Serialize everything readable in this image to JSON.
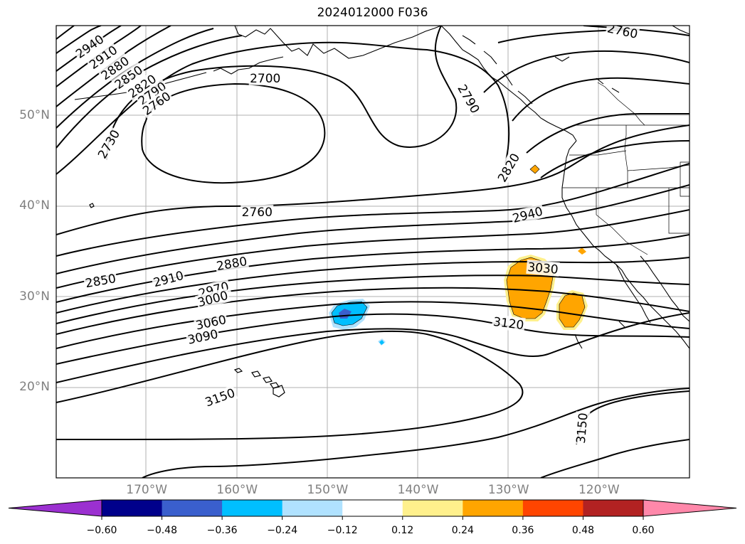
{
  "title": "2024012000 F036",
  "lat_labels": [
    {
      "lat": 50,
      "text": "50°N"
    },
    {
      "lat": 40,
      "text": "40°N"
    },
    {
      "lat": 30,
      "text": "30°N"
    },
    {
      "lat": 20,
      "text": "20°N"
    }
  ],
  "lon_labels": [
    {
      "lon": -170,
      "text": "170°W"
    },
    {
      "lon": -160,
      "text": "160°W"
    },
    {
      "lon": -150,
      "text": "150°W"
    },
    {
      "lon": -140,
      "text": "140°W"
    },
    {
      "lon": -130,
      "text": "130°W"
    },
    {
      "lon": -120,
      "text": "120°W"
    }
  ],
  "contour_labels": [
    {
      "text": "2940",
      "lon": -176.3,
      "lat": 57.7,
      "rot": -35
    },
    {
      "text": "2910",
      "lon": -174.8,
      "lat": 56.5,
      "rot": -35
    },
    {
      "text": "2880",
      "lon": -173.5,
      "lat": 55.3,
      "rot": -35
    },
    {
      "text": "2850",
      "lon": -172.0,
      "lat": 54.3,
      "rot": -35
    },
    {
      "text": "2820",
      "lon": -170.5,
      "lat": 53.3,
      "rot": -35
    },
    {
      "text": "2790",
      "lon": -169.4,
      "lat": 52.5,
      "rot": -35
    },
    {
      "text": "2760",
      "lon": -168.9,
      "lat": 51.4,
      "rot": -35
    },
    {
      "text": "2700",
      "lon": -156.9,
      "lat": 54.2,
      "rot": 0
    },
    {
      "text": "2730",
      "lon": -174.2,
      "lat": 46.9,
      "rot": -60
    },
    {
      "text": "2760",
      "lon": -157.8,
      "lat": 39.4,
      "rot": 0
    },
    {
      "text": "2790",
      "lon": -134.4,
      "lat": 51.9,
      "rot": 60
    },
    {
      "text": "2820",
      "lon": -130.0,
      "lat": 44.3,
      "rot": -60
    },
    {
      "text": "2940",
      "lon": -127.9,
      "lat": 39.1,
      "rot": -15
    },
    {
      "text": "2880",
      "lon": -160.6,
      "lat": 33.7,
      "rot": -10
    },
    {
      "text": "2850",
      "lon": -175.1,
      "lat": 31.8,
      "rot": -10
    },
    {
      "text": "2910",
      "lon": -167.6,
      "lat": 32.0,
      "rot": -15
    },
    {
      "text": "2970",
      "lon": -162.6,
      "lat": 30.8,
      "rot": -15
    },
    {
      "text": "3000",
      "lon": -162.7,
      "lat": 29.8,
      "rot": -15
    },
    {
      "text": "3030",
      "lon": -126.2,
      "lat": 33.2,
      "rot": 5
    },
    {
      "text": "3060",
      "lon": -162.9,
      "lat": 27.2,
      "rot": -12
    },
    {
      "text": "3090",
      "lon": -163.8,
      "lat": 25.6,
      "rot": -12
    },
    {
      "text": "3120",
      "lon": -130.0,
      "lat": 27.1,
      "rot": 7
    },
    {
      "text": "3150",
      "lon": -161.9,
      "lat": 18.9,
      "rot": -20
    },
    {
      "text": "3150",
      "lon": -121.9,
      "lat": 15.5,
      "rot": -85
    },
    {
      "text": "2760",
      "lon": -117.4,
      "lat": 59.4,
      "rot": 12
    }
  ],
  "colorbar": {
    "colors": [
      "#9b30d0",
      "#00008b",
      "#3a5fcd",
      "#00bfff",
      "#b0e2ff",
      "#ffffff",
      "#fff08c",
      "#ffa500",
      "#ff4500",
      "#b22222",
      "#ff88aa"
    ],
    "ticks": [
      "−0.60",
      "−0.48",
      "−0.36",
      "−0.24",
      "−0.12",
      "0.12",
      "0.24",
      "0.36",
      "0.48",
      "0.60"
    ]
  }
}
